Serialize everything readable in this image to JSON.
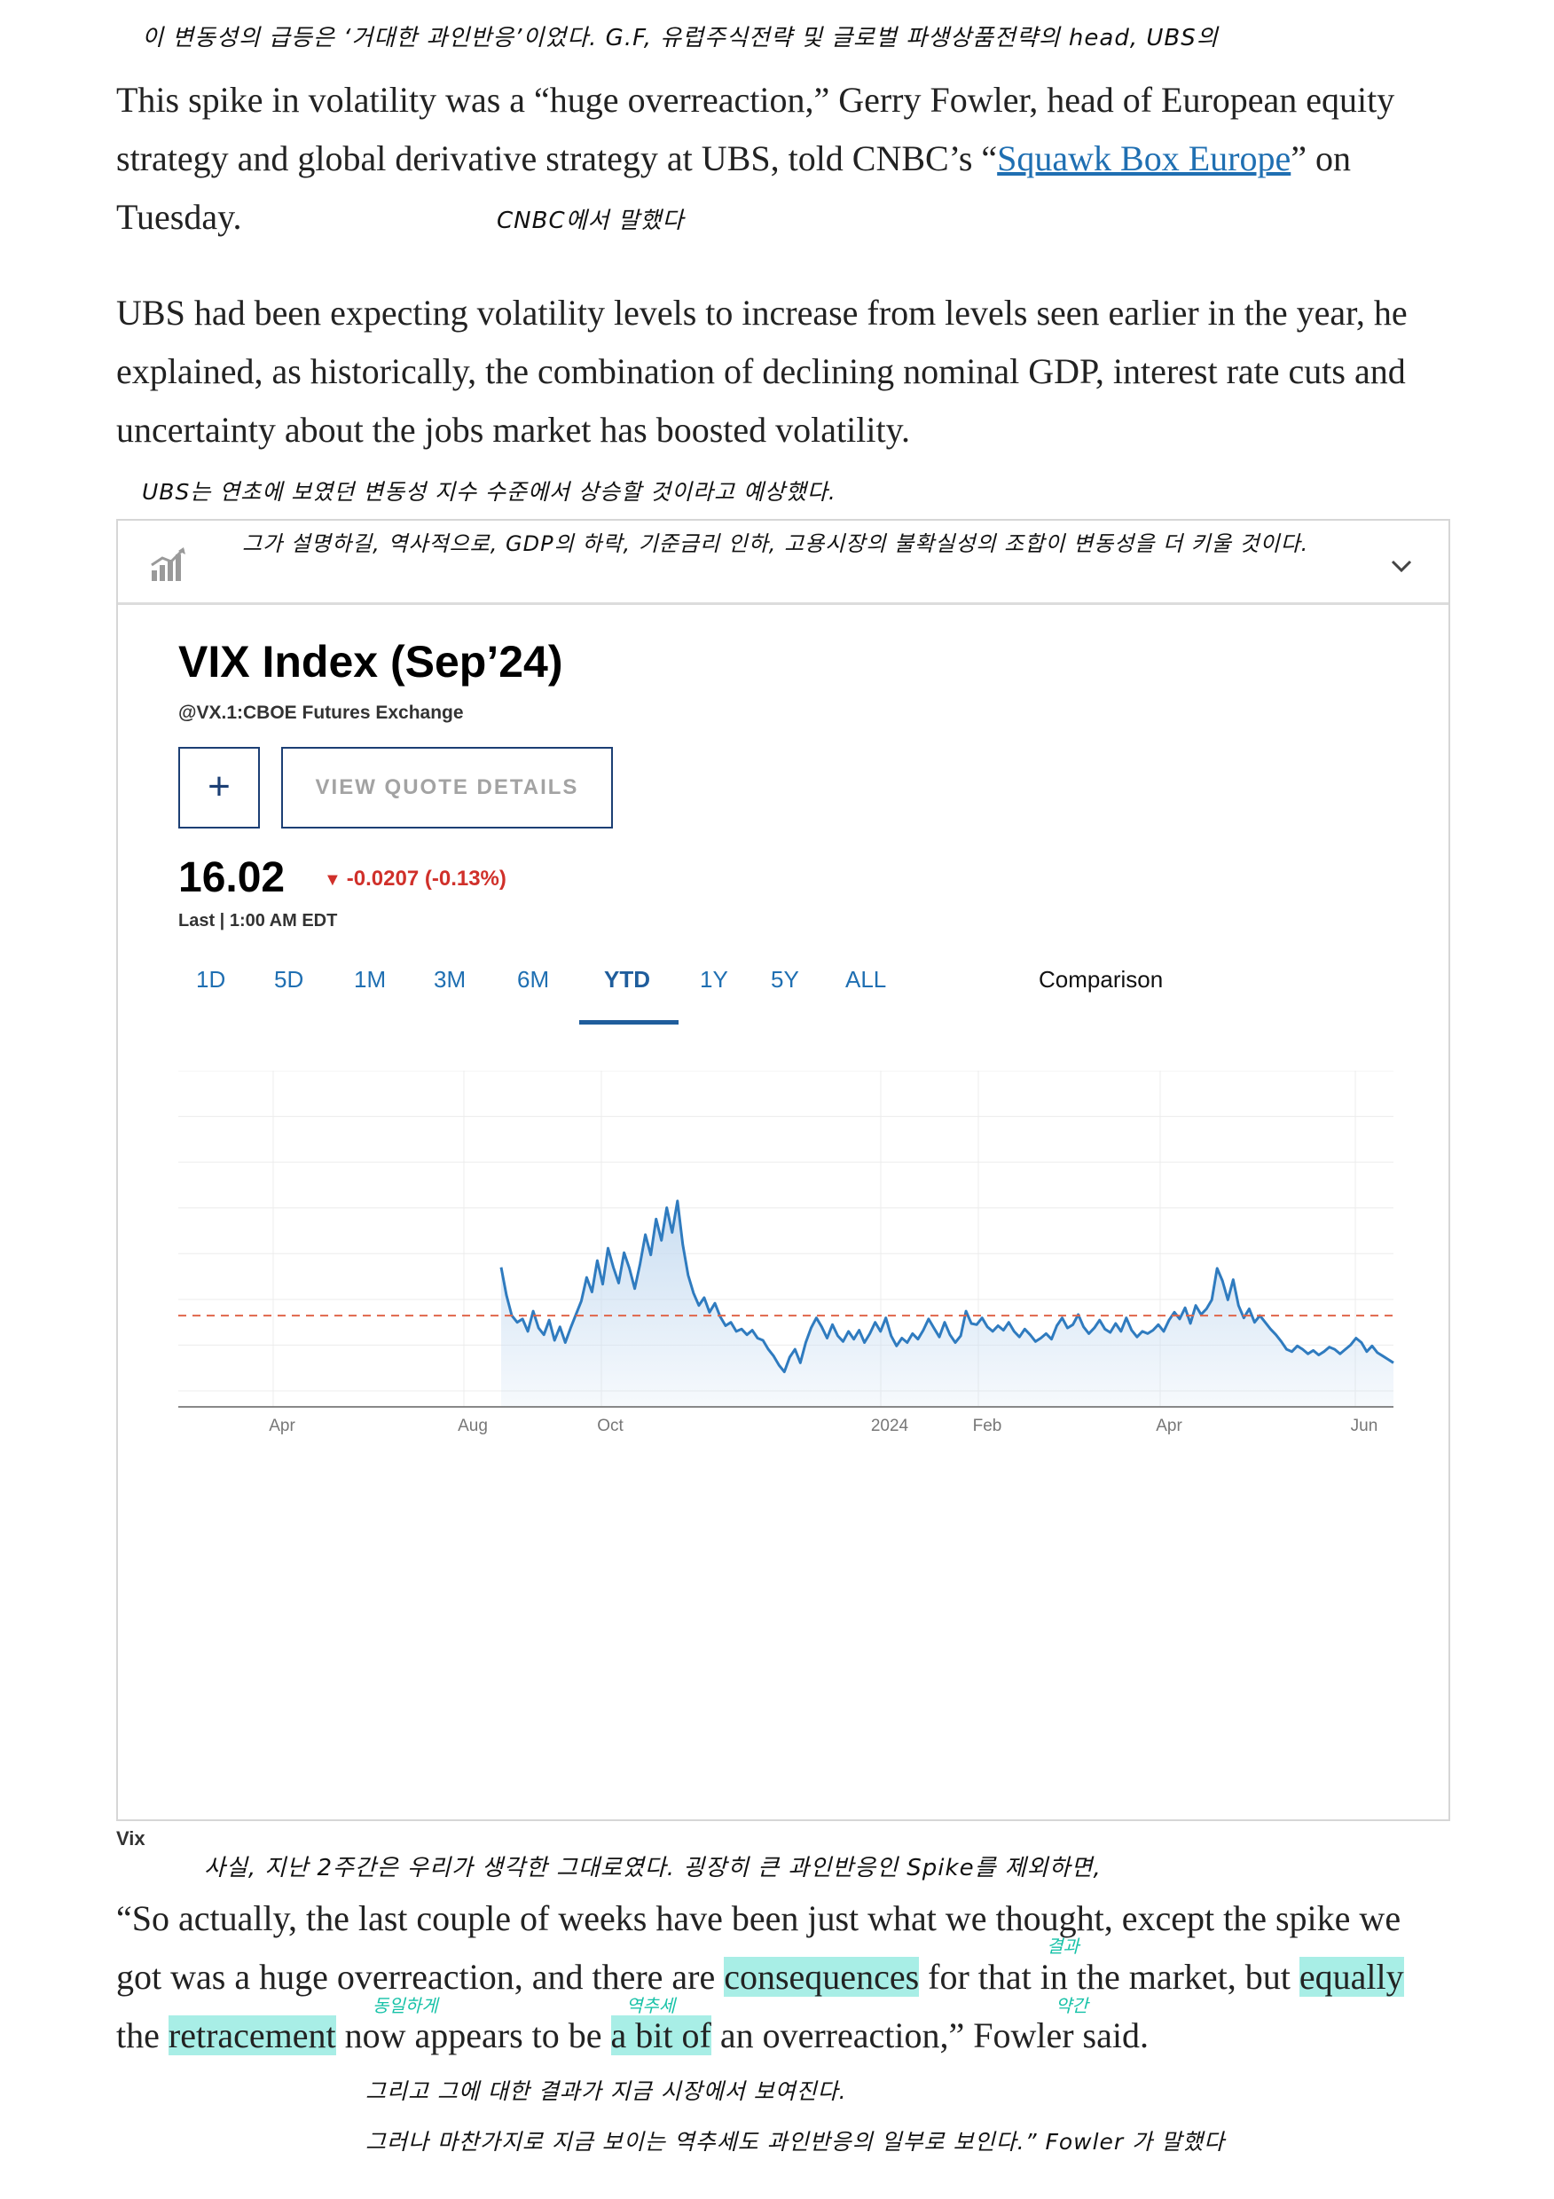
{
  "article": {
    "paragraph1": {
      "text_before_link": "This spike in volatility was a “huge overreaction,” Gerry Fowler, head of European equity strategy and global derivative strategy at UBS, told CNBC’s “",
      "link_text": "Squawk Box Europe",
      "text_after_link": "” on Tuesday."
    },
    "paragraph2": "UBS had been expecting volatility levels to increase from levels seen earlier in the year, he explained, as historically, the combination of declining nominal GDP, interest rate cuts and uncertainty about the jobs market has boosted volatility.",
    "quote": {
      "p1": "“So actually, the last couple of weeks have been just what we thought, except the spike we got was a huge overreaction, and there are ",
      "hl1": "consequences",
      "p2": " for that in the market, but ",
      "hl2": "equally",
      "p3": " the ",
      "hl3": "retracement",
      "p4": " now appears to be ",
      "hl4": "a bit of",
      "p5": " an overreaction,” Fowler said."
    },
    "caption": "Vix"
  },
  "annotations": {
    "top": "이 변동성의 급등은 ‘거대한 과인반응’이었다. G.F, 유럽주식전략 및 글로벌 파생상품전략의 head, UBS의",
    "cnbc": "CNBC에서 말했다",
    "ubs1": "UBS는 연초에 보였던 변동성 지수 수준에서 상승할 것이라고 예상했다.",
    "ubs2": "그가 설명하길, 역사적으로, GDP의 하락, 기준금리 인하, 고용시장의 불확실성의 조합이 변동성을 더 키울 것이다.",
    "quote_top": "사실, 지난 2주간은 우리가 생각한 그대로였다. 굉장히 큰 과인반응인 Spike를 제외하면,",
    "word_consequences": "결과",
    "word_equally": "동일하게",
    "word_retracement": "역추세",
    "word_bitof": "약간",
    "bottom1": "그리고 그에 대한 결과가 지금 시장에서 보여진다.",
    "bottom2": "그러나 마찬가지로 지금 보이는 역추세도 과인반응의 일부로 보인다.” Fowler 가 말했다"
  },
  "widget": {
    "title": "VIX Index (Sep’24)",
    "exchange": "@VX.1:CBOE Futures Exchange",
    "add_label": "+",
    "quote_button": "VIEW QUOTE DETAILS",
    "price": "16.02",
    "change": "-0.0207 (-0.13%)",
    "change_arrow": "▼",
    "last_label": "Last | 1:00 AM EDT",
    "tabs": [
      "1D",
      "5D",
      "1M",
      "3M",
      "6M",
      "YTD",
      "1Y",
      "5Y",
      "ALL"
    ],
    "active_tab": "YTD",
    "comparison": "Comparison",
    "icons": [
      "chart-icon",
      "chevron-down-icon"
    ],
    "colors": {
      "line": "#2f7bbf",
      "fill": "#c7dcf1",
      "reference": "#e0664a",
      "down": "#d0302a",
      "tab": "#1f6fb2"
    }
  },
  "chart_data": {
    "type": "area",
    "x_tick_labels": [
      "Apr",
      "Aug",
      "Oct",
      "2024",
      "Feb",
      "Apr",
      "Jun"
    ],
    "reference_line": "dashed",
    "grid": true,
    "series": [
      {
        "values": [
          22.5,
          20.0,
          18.2,
          17.6,
          17.9,
          16.8,
          18.6,
          17.1,
          16.5,
          17.8,
          16.0,
          17.2,
          15.8,
          17.1,
          18.3,
          19.5,
          21.6,
          20.3,
          23.1,
          21.0,
          24.2,
          22.5,
          21.1,
          23.8,
          22.4,
          20.6,
          22.8,
          25.4,
          23.6,
          26.8,
          24.9,
          27.8,
          25.6,
          28.4,
          24.5,
          21.8,
          20.2,
          19.1,
          19.8,
          18.5,
          19.3,
          18.1,
          17.3,
          17.6,
          16.8,
          17.0,
          16.5,
          16.9,
          16.2,
          16.0,
          15.2,
          14.6,
          13.8,
          13.2,
          14.5,
          15.2,
          14.0,
          15.8,
          17.1,
          18.0,
          17.2,
          16.2,
          17.4,
          16.4,
          15.9,
          16.8,
          16.1,
          16.9,
          15.8,
          16.6,
          17.6,
          16.8,
          18.0,
          16.4,
          15.5,
          16.2,
          15.8,
          16.6,
          16.1,
          16.9,
          17.9,
          17.1,
          16.3,
          17.6,
          16.5,
          15.8,
          16.4,
          18.6,
          17.5,
          17.4,
          18.0,
          17.2,
          16.8,
          17.3,
          16.9,
          17.6,
          16.8,
          16.3,
          17.0,
          16.5,
          15.9,
          16.2,
          16.6,
          16.1,
          17.3,
          18.0,
          17.1,
          17.4,
          18.3,
          17.2,
          16.6,
          17.1,
          17.8,
          17.0,
          16.7,
          17.5,
          16.8,
          18.0,
          16.9,
          16.3,
          16.8,
          16.6,
          16.9,
          17.4,
          16.8,
          17.8,
          18.5,
          17.9,
          18.9,
          17.5,
          19.1,
          18.3,
          18.8,
          19.6,
          22.4,
          21.3,
          19.6,
          21.4,
          19.1,
          18.0,
          18.8,
          17.6,
          18.2,
          17.6,
          17.0,
          16.5,
          15.9,
          15.2,
          15.0,
          15.5,
          15.2,
          14.8,
          15.1,
          14.7,
          15.0,
          15.4,
          15.2,
          14.8,
          15.2,
          15.6,
          16.2,
          15.8,
          15.0,
          15.5,
          14.9,
          14.6,
          14.3,
          14.0
        ]
      }
    ]
  }
}
